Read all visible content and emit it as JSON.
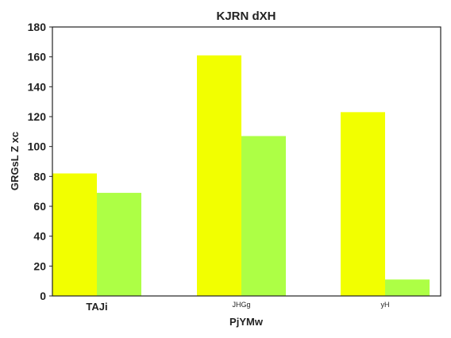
{
  "chart_data": {
    "type": "bar",
    "title": "KJRN dXH",
    "xlabel": "PjYMw",
    "ylabel": "GRGsL Z xc",
    "categories": [
      "TAJi",
      "JHGg",
      "yH"
    ],
    "series": [
      {
        "values": [
          82,
          161,
          123
        ],
        "color": "#f2ff00"
      },
      {
        "values": [
          69,
          107,
          11
        ],
        "color": "#adff45"
      }
    ],
    "ylim": [
      0,
      180
    ],
    "yticks": [
      "0",
      "20",
      "40",
      "60",
      "80",
      "100",
      "120",
      "140",
      "160",
      "180"
    ],
    "grid": false
  }
}
